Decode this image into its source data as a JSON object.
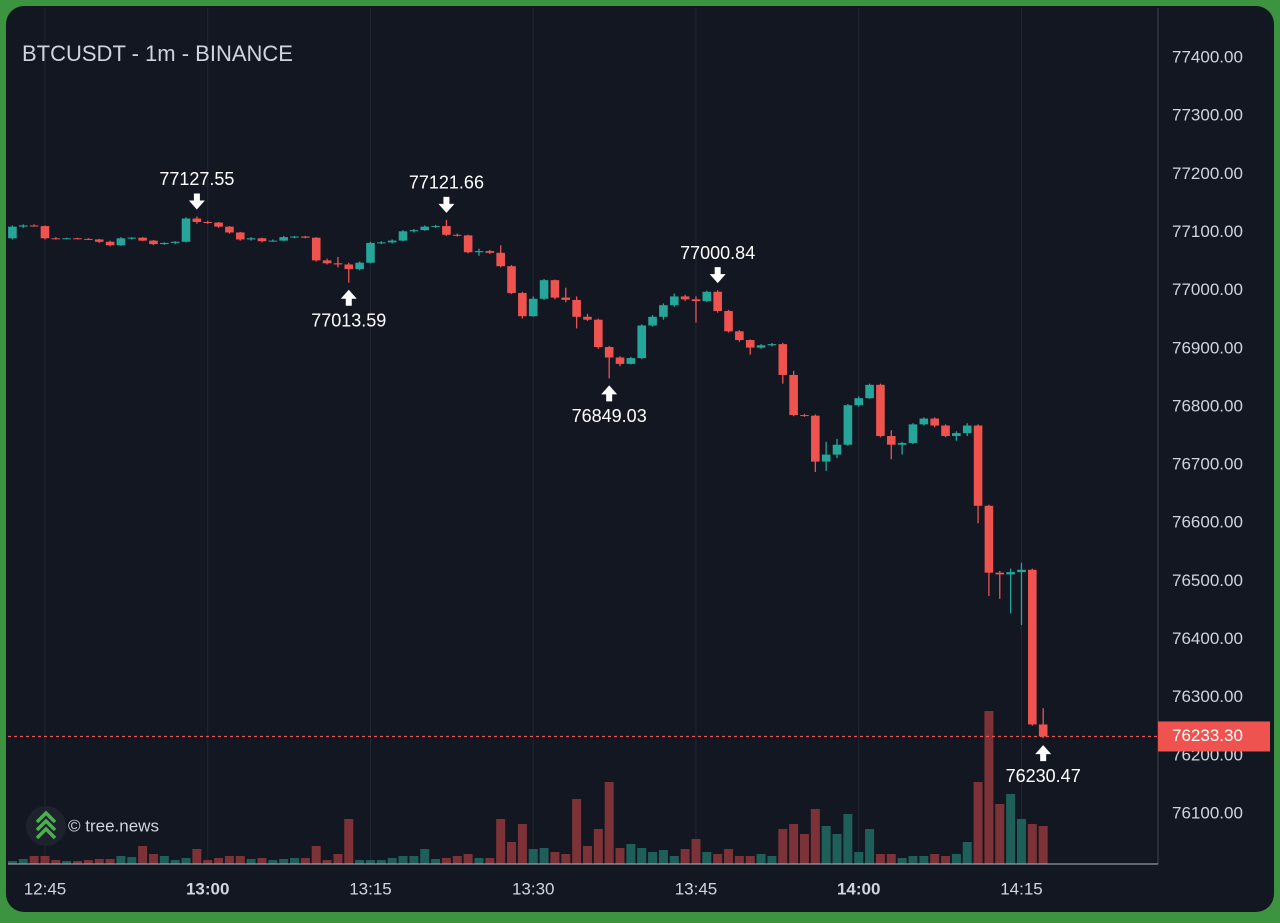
{
  "chart_data": {
    "type": "candlestick",
    "title": "BTCUSDT - 1m - BINANCE",
    "watermark": "© tree.news",
    "colors": {
      "up": "#26a69a",
      "down": "#ef5350"
    },
    "categories": [
      null,
      null,
      null,
      "12:45",
      null,
      null,
      null,
      null,
      null,
      null,
      null,
      null,
      null,
      null,
      null,
      null,
      null,
      null,
      "13:00",
      null,
      null,
      null,
      null,
      null,
      null,
      null,
      null,
      null,
      null,
      null,
      null,
      null,
      null,
      "13:15",
      null,
      null,
      null,
      null,
      null,
      null,
      null,
      null,
      null,
      null,
      null,
      null,
      null,
      null,
      "13:30",
      null,
      null,
      null,
      null,
      null,
      null,
      null,
      null,
      null,
      null,
      null,
      null,
      null,
      null,
      "13:45",
      null,
      null,
      null,
      null,
      null,
      null,
      null,
      null,
      null,
      null,
      null,
      null,
      null,
      null,
      "14:00",
      null,
      null,
      null,
      null,
      null,
      null,
      null,
      null,
      null,
      null,
      null,
      null,
      null,
      null,
      "14:15",
      null,
      null
    ],
    "open": [
      77090,
      77110,
      77112,
      77111,
      77090,
      77089,
      77090,
      77089,
      77088,
      77084,
      77078,
      77090,
      77091,
      77086,
      77080,
      77082,
      77084,
      77124,
      77118,
      77117,
      77110,
      77100,
      77088,
      77090,
      77085,
      77086,
      77092,
      77093,
      77091,
      77052,
      77047,
      77045,
      77037,
      77048,
      77082,
      77083,
      77086,
      77102,
      77104,
      77110,
      77111,
      77096,
      77095,
      77066,
      77068,
      77065,
      77042,
      76996,
      76956,
      76986,
      77018,
      76988,
      76984,
      76955,
      76950,
      76903,
      76885,
      76874,
      76884,
      76940,
      76955,
      76975,
      76990,
      76985,
      76982,
      76998,
      76965,
      76930,
      76915,
      76902,
      76906,
      76908,
      76855,
      76786,
      76785,
      76706,
      76718,
      76735,
      76803,
      76815,
      76838,
      76750,
      76735,
      76738,
      76770,
      76780,
      76768,
      76750,
      76755,
      76768,
      76630,
      76515,
      76512,
      76516,
      76520,
      76254
    ],
    "high": [
      77112,
      77114,
      77114,
      77112,
      77092,
      77091,
      77091,
      77090,
      77089,
      77086,
      77092,
      77092,
      77092,
      77087,
      77083,
      77085,
      77126,
      77127.55,
      77120,
      77118,
      77111,
      77101,
      77092,
      77091,
      77088,
      77094,
      77094,
      77094,
      77092,
      77055,
      77058,
      77048,
      77050,
      77084,
      77085,
      77088,
      77104,
      77106,
      77112,
      77113,
      77121.66,
      77098,
      77096,
      77072,
      77070,
      77078,
      77044,
      76998,
      76990,
      77020,
      77019,
      77005,
      76990,
      76960,
      76952,
      76905,
      76887,
      76886,
      76942,
      76958,
      76978,
      76995,
      76993,
      76990,
      77000,
      77000.84,
      76967,
      76932,
      76916,
      76908,
      76910,
      76910,
      76862,
      76788,
      76787,
      76740,
      76745,
      76805,
      76818,
      76840,
      76840,
      76760,
      76740,
      76772,
      76782,
      76782,
      76770,
      76758,
      76772,
      76770,
      76632,
      76518,
      76522,
      76532,
      76522,
      76282
    ],
    "low": [
      77088,
      77108,
      77110,
      77088,
      77088,
      77088,
      77088,
      77087,
      77082,
      77076,
      77077,
      77088,
      77085,
      77078,
      77079,
      77080,
      77083,
      77115,
      77115,
      77108,
      77098,
      77086,
      77086,
      77083,
      77084,
      77085,
      77090,
      77090,
      77050,
      77045,
      77040,
      77013.59,
      77035,
      77047,
      77080,
      77081,
      77085,
      77100,
      77103,
      77108,
      77094,
      77093,
      77064,
      77060,
      77063,
      77040,
      76994,
      76952,
      76955,
      76984,
      76985,
      76980,
      76935,
      76948,
      76900,
      76849.03,
      76870,
      76873,
      76882,
      76938,
      76950,
      76972,
      76982,
      76945,
      76980,
      76962,
      76928,
      76912,
      76890,
      76900,
      76904,
      76840,
      76784,
      76783,
      76688,
      76690,
      76712,
      76733,
      76800,
      76814,
      76748,
      76710,
      76718,
      76736,
      76768,
      76765,
      76748,
      76742,
      76750,
      76600,
      76475,
      76470,
      76445,
      76425,
      76252,
      76230.47
    ],
    "close": [
      77110,
      77112,
      77111,
      77090,
      77089,
      77090,
      77089,
      77088,
      77084,
      77078,
      77090,
      77091,
      77086,
      77080,
      77082,
      77084,
      77124,
      77118,
      77117,
      77110,
      77100,
      77088,
      77090,
      77085,
      77086,
      77092,
      77093,
      77091,
      77052,
      77047,
      77045,
      77037,
      77048,
      77082,
      77083,
      77086,
      77102,
      77104,
      77110,
      77111,
      77096,
      77095,
      77066,
      77068,
      77065,
      77042,
      76996,
      76956,
      76986,
      77018,
      76988,
      76984,
      76955,
      76950,
      76903,
      76885,
      76874,
      76884,
      76940,
      76955,
      76975,
      76990,
      76985,
      76982,
      76998,
      76965,
      76930,
      76915,
      76902,
      76906,
      76908,
      76855,
      76786,
      76785,
      76706,
      76718,
      76735,
      76803,
      76815,
      76838,
      76750,
      76735,
      76738,
      76770,
      76780,
      76768,
      76750,
      76755,
      76768,
      76630,
      76515,
      76512,
      76516,
      76520,
      76254,
      76233.3
    ],
    "volume": [
      3,
      5,
      8,
      8,
      4,
      3,
      3,
      4,
      5,
      5,
      8,
      7,
      18,
      10,
      8,
      4,
      6,
      15,
      4,
      6,
      8,
      8,
      5,
      6,
      4,
      5,
      6,
      6,
      18,
      4,
      10,
      45,
      4,
      4,
      4,
      6,
      8,
      8,
      15,
      5,
      6,
      8,
      10,
      6,
      6,
      45,
      22,
      40,
      15,
      16,
      12,
      10,
      65,
      18,
      35,
      82,
      16,
      20,
      16,
      12,
      14,
      8,
      15,
      25,
      12,
      10,
      15,
      8,
      8,
      10,
      8,
      35,
      40,
      30,
      55,
      38,
      30,
      50,
      12,
      35,
      10,
      10,
      6,
      8,
      8,
      10,
      8,
      10,
      22,
      82,
      153,
      60,
      70,
      45,
      40,
      38
    ],
    "ylim": [
      76014,
      77486
    ],
    "yticks": [
      {
        "value": 76100,
        "label": "76100.00"
      },
      {
        "value": 76200,
        "label": "76200.00"
      },
      {
        "value": 76300,
        "label": "76300.00"
      },
      {
        "value": 76400,
        "label": "76400.00"
      },
      {
        "value": 76500,
        "label": "76500.00"
      },
      {
        "value": 76600,
        "label": "76600.00"
      },
      {
        "value": 76700,
        "label": "76700.00"
      },
      {
        "value": 76800,
        "label": "76800.00"
      },
      {
        "value": 76900,
        "label": "76900.00"
      },
      {
        "value": 77000,
        "label": "77000.00"
      },
      {
        "value": 77100,
        "label": "77100.00"
      },
      {
        "value": 77200,
        "label": "77200.00"
      },
      {
        "value": 77300,
        "label": "77300.00"
      },
      {
        "value": 77400,
        "label": "77400.00"
      }
    ],
    "last_price": {
      "value": 76233.3,
      "label": "76233.30"
    },
    "annotations": [
      77127.55,
      77013.59,
      77121.66,
      76849.03,
      77000.84,
      76230.47
    ],
    "grid": true
  }
}
